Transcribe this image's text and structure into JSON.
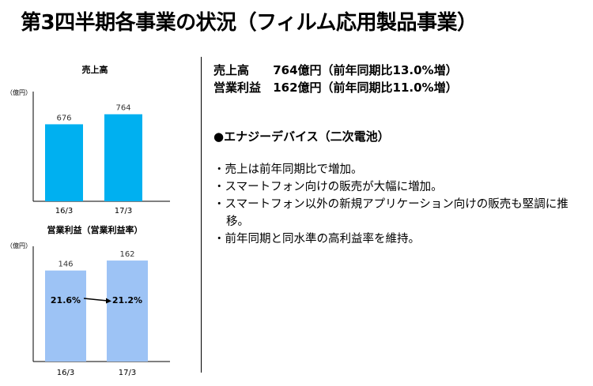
{
  "title": "第3四半期各事業の状況（フィルム応用製品事業）",
  "summary": {
    "sales": {
      "label": "売上高",
      "value": "764億円（前年同期比13.0%増）"
    },
    "profit": {
      "label": "営業利益",
      "value": "162億円（前年同期比11.0%増）"
    }
  },
  "segment_heading": "●エナジーデバイス（二次電池）",
  "bullets": [
    "・売上は前年同期比で増加。",
    "・スマートフォン向けの販売が大幅に増加。",
    "・スマートフォン以外の新規アプリケーション向けの販売も堅調に推移。",
    "・前年同期と同水準の高利益率を維持。"
  ],
  "colors": {
    "sales_bar": "#00b0f0",
    "profit_bar": "#9dc3f5"
  },
  "chart_data": [
    {
      "type": "bar",
      "title": "売上高",
      "unit": "（億円）",
      "categories": [
        "16/3",
        "17/3"
      ],
      "values": [
        676,
        764
      ],
      "ylim": [
        0,
        880
      ]
    },
    {
      "type": "bar",
      "title": "営業利益（営業利益率）",
      "unit": "（億円）",
      "categories": [
        "16/3",
        "17/3"
      ],
      "values": [
        146,
        162
      ],
      "margins": [
        "21.6%",
        "21.2%"
      ],
      "ylim": [
        0,
        176
      ]
    }
  ]
}
